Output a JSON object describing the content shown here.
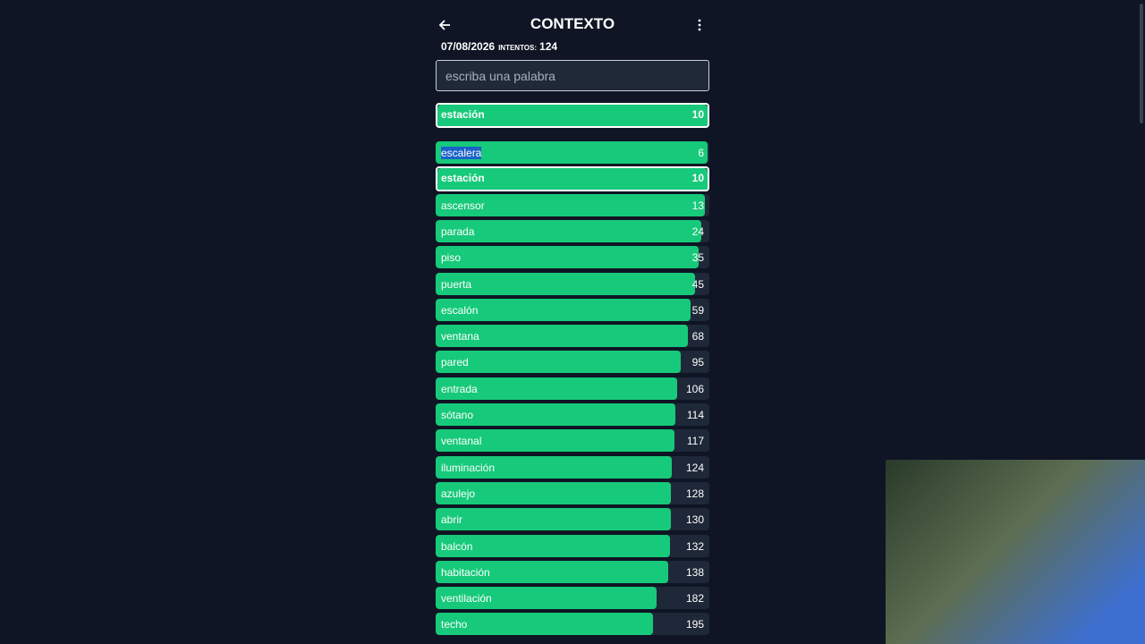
{
  "header": {
    "title": "CONTEXTO",
    "date": "07/08/2026",
    "attempts_label": "INTENTOS:",
    "attempts": 124
  },
  "input": {
    "placeholder": "escriba una palabra"
  },
  "last_guess": {
    "word": "estación",
    "rank": 10
  },
  "guesses": [
    {
      "word": "escalera",
      "rank": 6
    },
    {
      "word": "estación",
      "rank": 10
    },
    {
      "word": "ascensor",
      "rank": 13
    },
    {
      "word": "parada",
      "rank": 24
    },
    {
      "word": "piso",
      "rank": 35
    },
    {
      "word": "puerta",
      "rank": 45
    },
    {
      "word": "escalón",
      "rank": 59
    },
    {
      "word": "ventana",
      "rank": 68
    },
    {
      "word": "pared",
      "rank": 95
    },
    {
      "word": "entrada",
      "rank": 106
    },
    {
      "word": "sótano",
      "rank": 114
    },
    {
      "word": "ventanal",
      "rank": 117
    },
    {
      "word": "iluminación",
      "rank": 124
    },
    {
      "word": "azulejo",
      "rank": 128
    },
    {
      "word": "abrir",
      "rank": 130
    },
    {
      "word": "balcón",
      "rank": 132
    },
    {
      "word": "habitación",
      "rank": 138
    },
    {
      "word": "ventilación",
      "rank": 182
    },
    {
      "word": "techo",
      "rank": 195
    }
  ]
}
